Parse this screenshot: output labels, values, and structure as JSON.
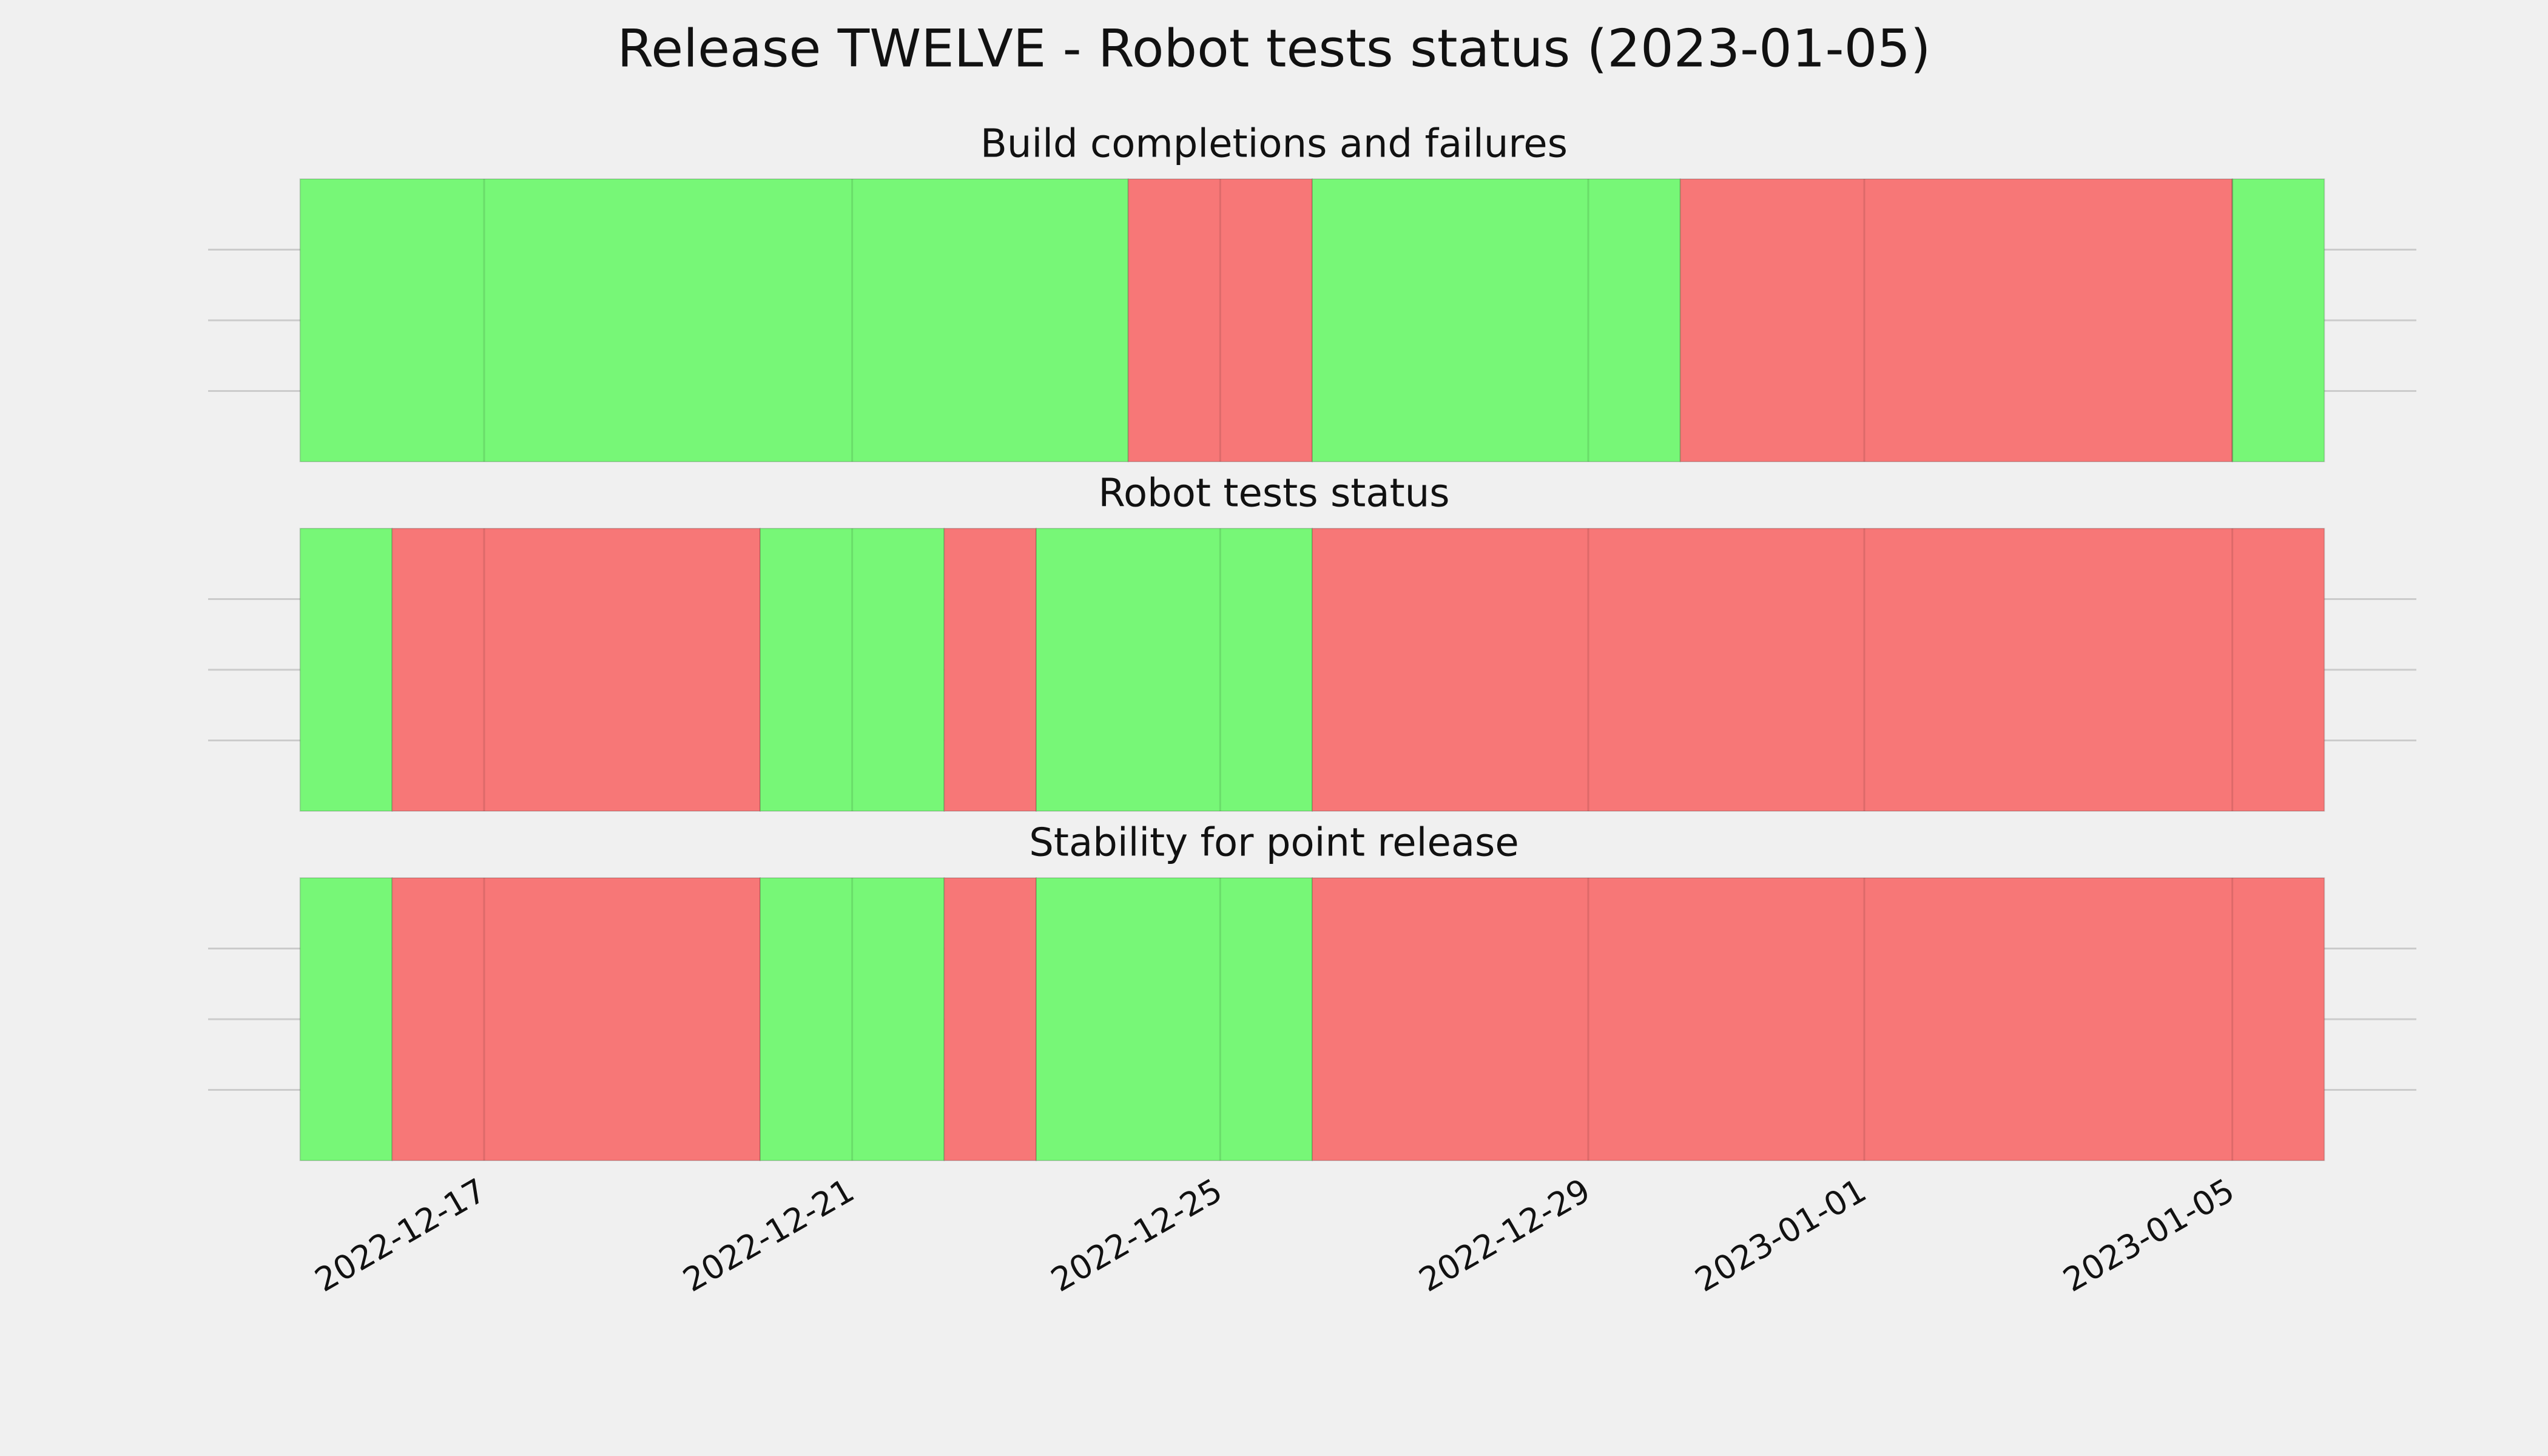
{
  "title": "Release TWELVE - Robot tests status (2023-01-05)",
  "chart_data": [
    {
      "type": "timeline",
      "title": "Build completions and failures",
      "x": [
        "2022-12-15",
        "2022-12-24",
        "2022-12-26",
        "2022-12-30",
        "2023-01-05",
        "2023-01-06"
      ],
      "colors": [
        "#77f777",
        "#f77777",
        "#77f777",
        "#f77777",
        "#77f777"
      ],
      "xlim": [
        "2022-12-14",
        "2023-01-07"
      ],
      "grid": true
    },
    {
      "type": "timeline",
      "title": "Robot tests status",
      "x": [
        "2022-12-15",
        "2022-12-16",
        "2022-12-20",
        "2022-12-22",
        "2022-12-23",
        "2022-12-26",
        "2023-01-06"
      ],
      "colors": [
        "#77f777",
        "#f77777",
        "#77f777",
        "#f77777",
        "#77f777",
        "#f77777"
      ],
      "xlim": [
        "2022-12-14",
        "2023-01-07"
      ],
      "grid": true
    },
    {
      "type": "timeline",
      "title": "Stability for point release",
      "x": [
        "2022-12-15",
        "2022-12-16",
        "2022-12-20",
        "2022-12-22",
        "2022-12-23",
        "2022-12-26",
        "2023-01-06"
      ],
      "colors": [
        "#77f777",
        "#f77777",
        "#77f777",
        "#f77777",
        "#77f777",
        "#f77777"
      ],
      "xlim": [
        "2022-12-14",
        "2023-01-07"
      ],
      "grid": true,
      "xticks": [
        "2022-12-17",
        "2022-12-21",
        "2022-12-25",
        "2022-12-29",
        "2023-01-01",
        "2023-01-05"
      ]
    }
  ]
}
